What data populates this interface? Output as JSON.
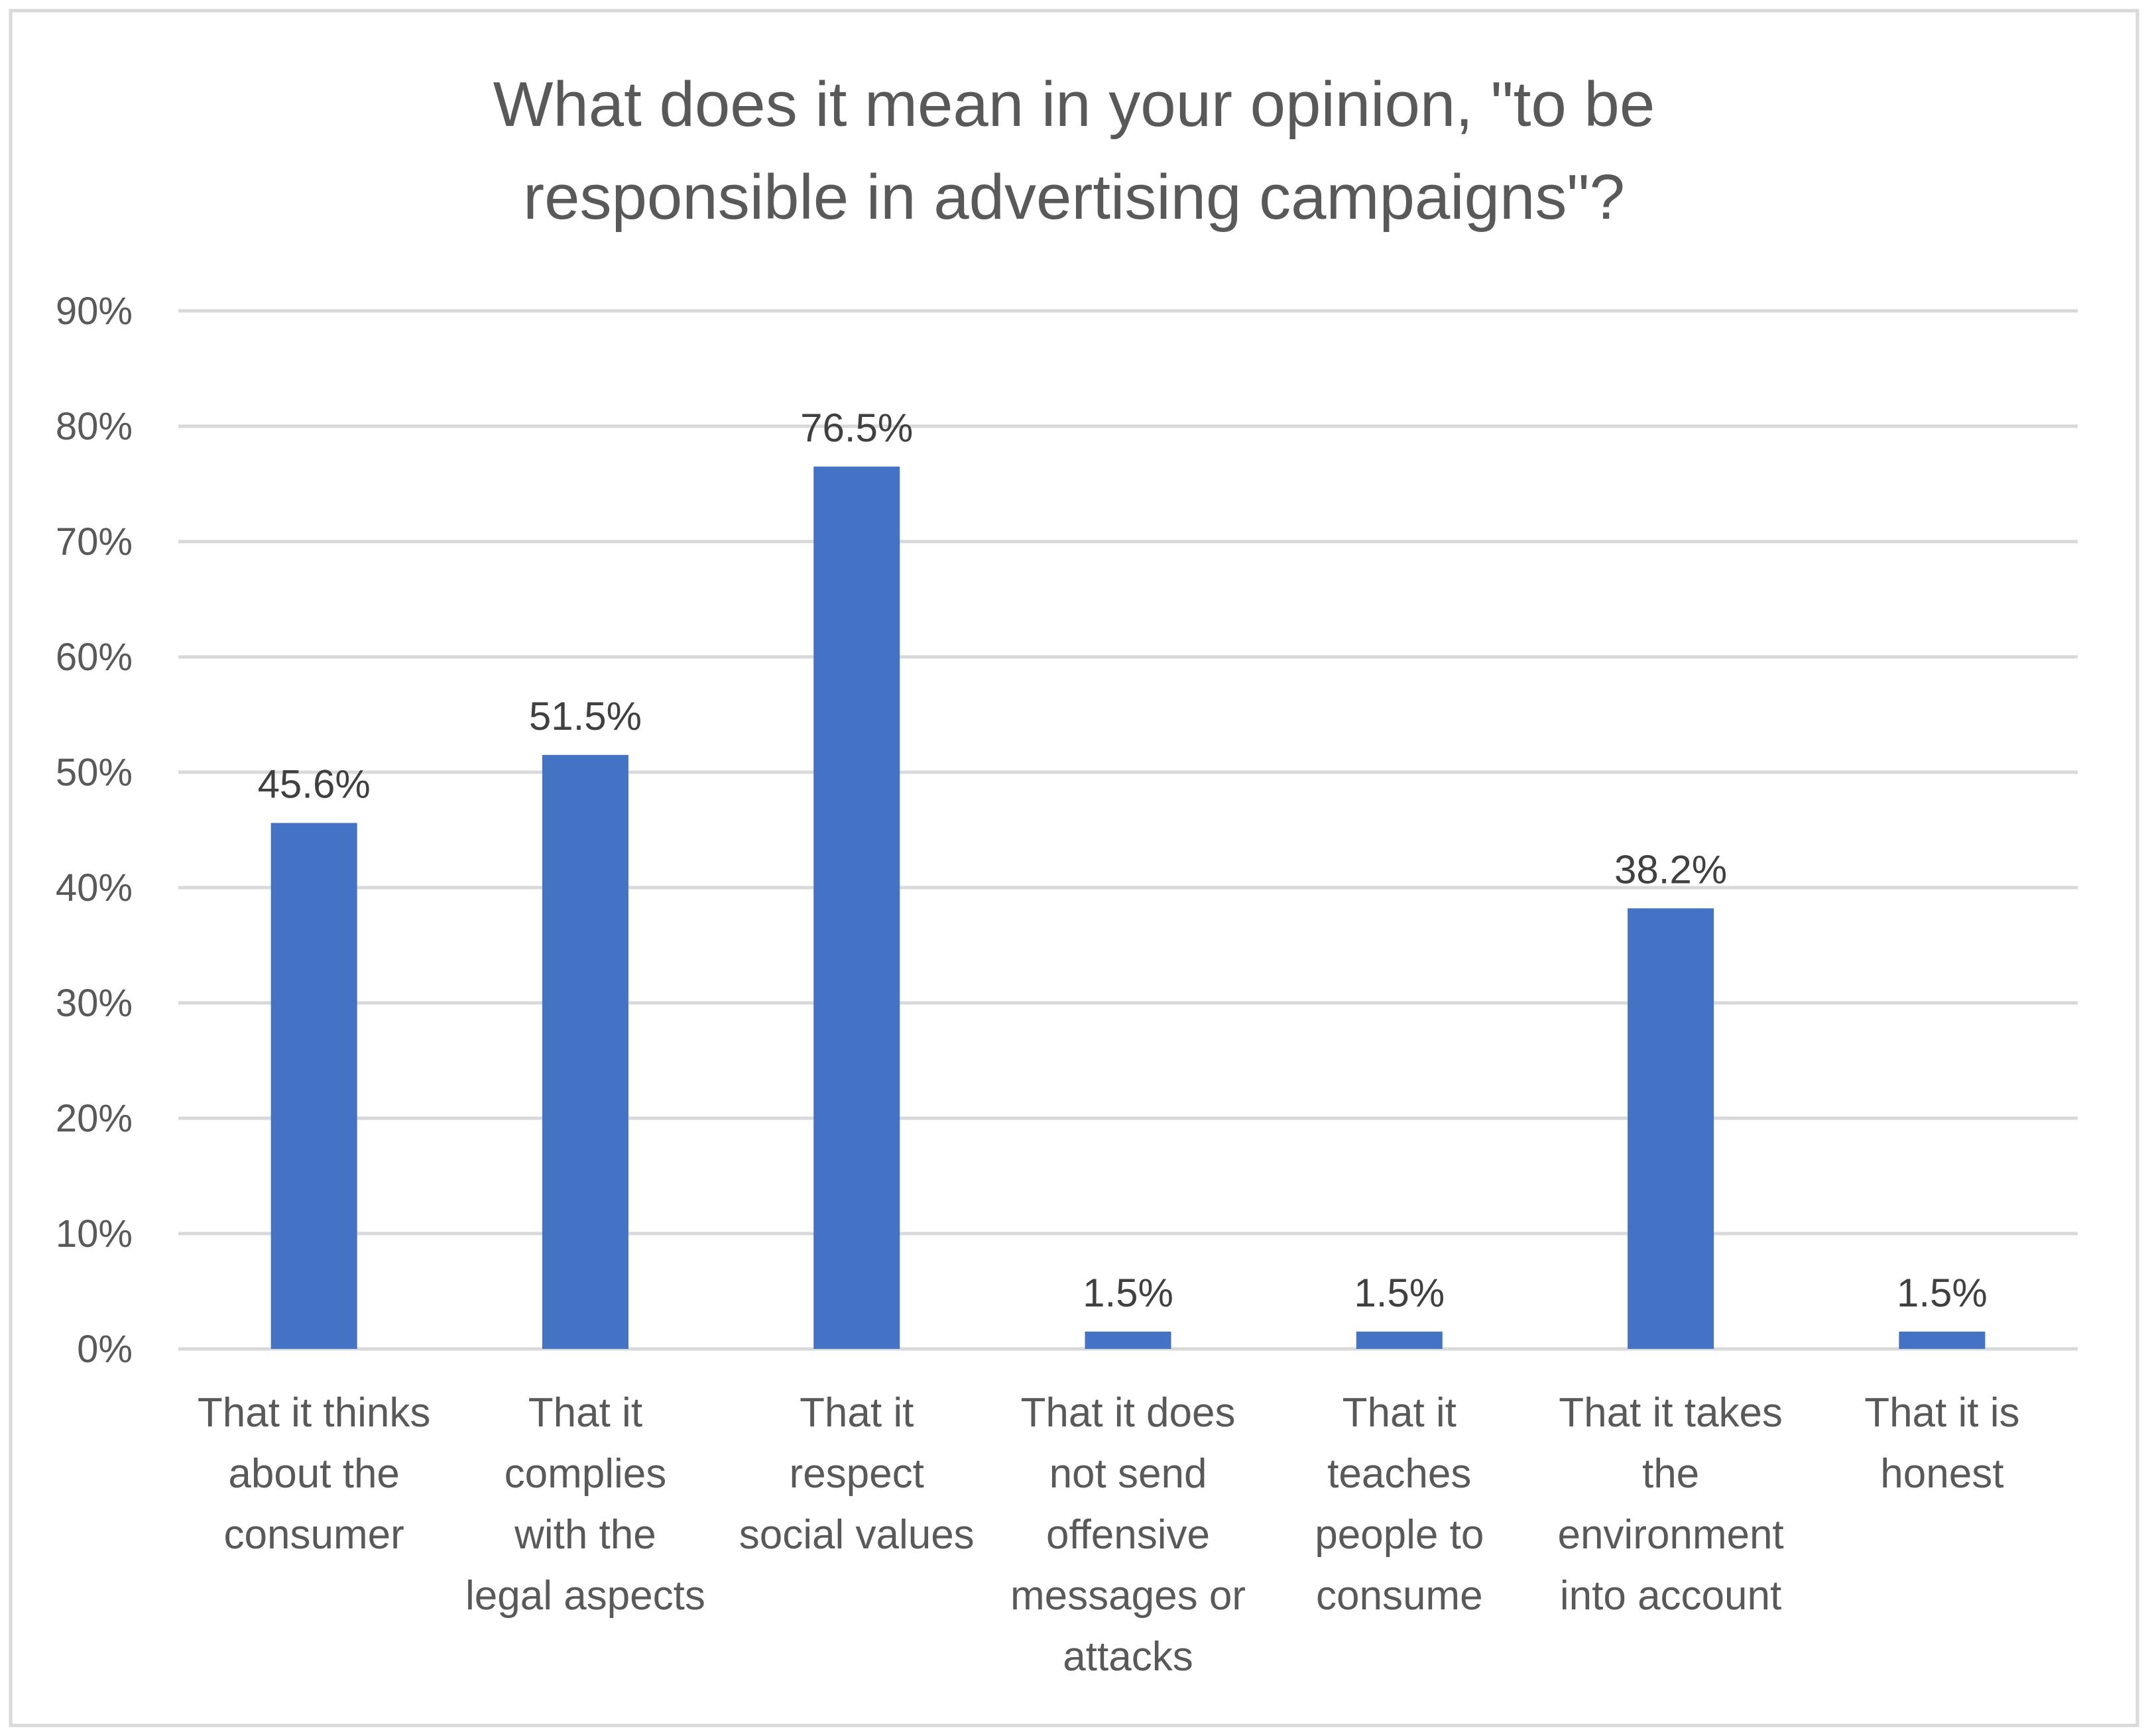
{
  "chart_data": {
    "type": "bar",
    "title": [
      "What does it mean in your opinion, \"to be",
      "responsible in advertising campaigns\"?"
    ],
    "xlabel": "",
    "ylabel": "",
    "ylim": [
      0,
      90
    ],
    "yticks": [
      0,
      10,
      20,
      30,
      40,
      50,
      60,
      70,
      80,
      90
    ],
    "ytick_labels": [
      "0%",
      "10%",
      "20%",
      "30%",
      "40%",
      "50%",
      "60%",
      "70%",
      "80%",
      "90%"
    ],
    "grid": true,
    "categories": [
      [
        "That it thinks",
        "about the",
        "consumer"
      ],
      [
        "That it",
        "complies",
        "with the",
        "legal aspects"
      ],
      [
        "That it",
        "respect",
        "social values"
      ],
      [
        "That it does",
        "not send",
        "offensive",
        "messages or",
        "attacks"
      ],
      [
        "That it",
        "teaches",
        "people to",
        "consume"
      ],
      [
        "That it takes",
        "the",
        "environment",
        "into account"
      ],
      [
        "That it is",
        "honest"
      ]
    ],
    "values": [
      45.6,
      51.5,
      76.5,
      1.5,
      1.5,
      38.2,
      1.5
    ],
    "data_labels": [
      "45.6%",
      "51.5%",
      "76.5%",
      "1.5%",
      "1.5%",
      "38.2%",
      "1.5%"
    ],
    "bar_color": "#4472C4",
    "grid_color": "#D9D9D9",
    "text_color": "#595959"
  }
}
